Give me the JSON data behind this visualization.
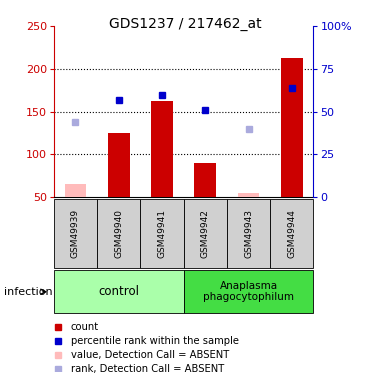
{
  "title": "GDS1237 / 217462_at",
  "samples": [
    "GSM49939",
    "GSM49940",
    "GSM49941",
    "GSM49942",
    "GSM49943",
    "GSM49944"
  ],
  "bar_values": [
    null,
    125,
    162,
    90,
    null,
    213
  ],
  "bar_color": "#cc0000",
  "blue_square_values": [
    null,
    163,
    170,
    152,
    null,
    178
  ],
  "pink_bar_values": [
    65,
    null,
    null,
    null,
    55,
    null
  ],
  "light_blue_square_values": [
    138,
    null,
    null,
    null,
    130,
    null
  ],
  "ylim_left": [
    50,
    250
  ],
  "yticks_left": [
    50,
    100,
    150,
    200,
    250
  ],
  "ytick_labels_right": [
    "0",
    "25",
    "50",
    "75",
    "100%"
  ],
  "left_axis_color": "#cc0000",
  "right_axis_color": "#0000cc",
  "bar_width": 0.5,
  "pink_bar_color": "#ffbbbb",
  "light_blue_color": "#aaaadd",
  "dark_blue_color": "#0000cc",
  "gray_label_color": "#d0d0d0",
  "control_color": "#aaffaa",
  "anaplasma_color": "#44dd44",
  "grid_dotted_color": "#000000",
  "legend_items": [
    {
      "color": "#cc0000",
      "label": "count"
    },
    {
      "color": "#0000cc",
      "label": "percentile rank within the sample"
    },
    {
      "color": "#ffbbbb",
      "label": "value, Detection Call = ABSENT"
    },
    {
      "color": "#aaaadd",
      "label": "rank, Detection Call = ABSENT"
    }
  ]
}
